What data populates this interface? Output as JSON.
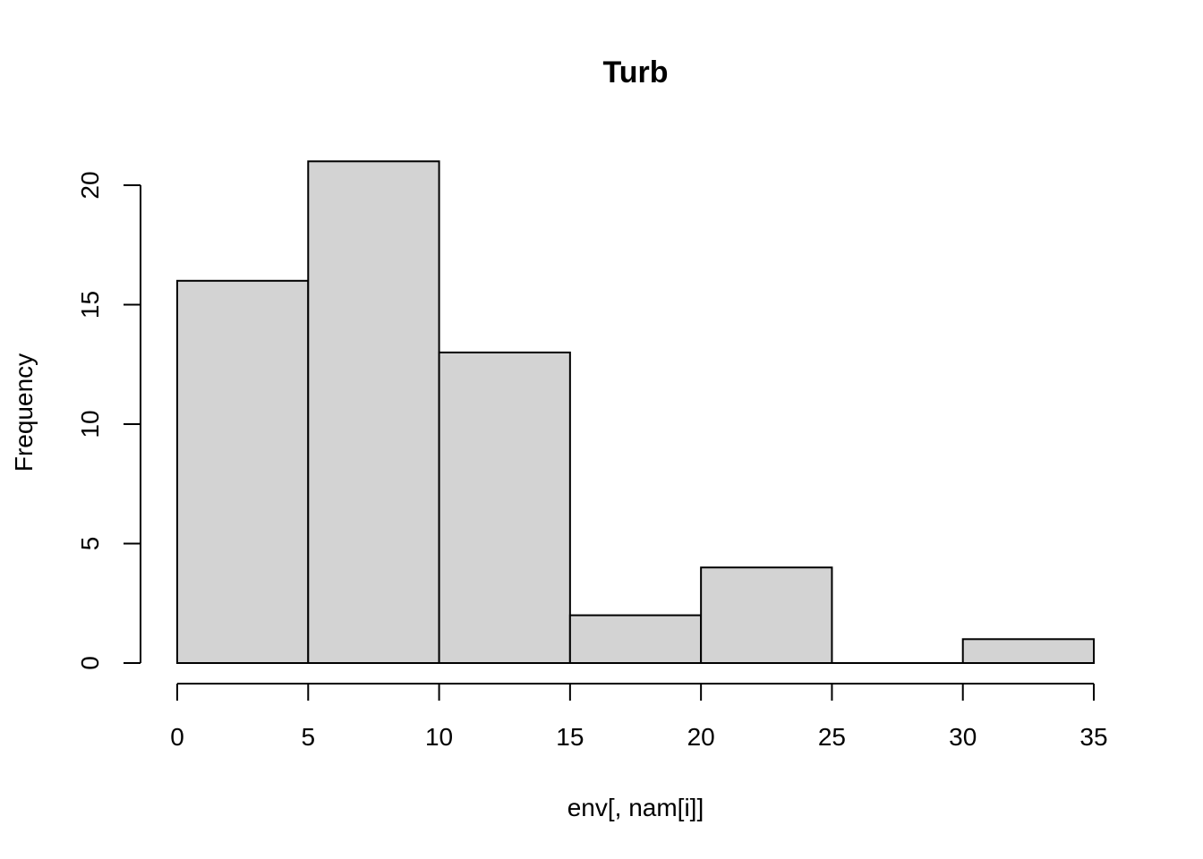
{
  "chart_data": {
    "type": "bar",
    "title": "Turb",
    "xlabel": "env[, nam[i]]",
    "ylabel": "Frequency",
    "bins": [
      {
        "from": 0,
        "to": 5,
        "count": 16
      },
      {
        "from": 5,
        "to": 10,
        "count": 21
      },
      {
        "from": 10,
        "to": 15,
        "count": 13
      },
      {
        "from": 15,
        "to": 20,
        "count": 2
      },
      {
        "from": 20,
        "to": 25,
        "count": 4
      },
      {
        "from": 25,
        "to": 30,
        "count": 0
      },
      {
        "from": 30,
        "to": 35,
        "count": 1
      }
    ],
    "xlim": [
      0,
      35
    ],
    "ylim": [
      0,
      21
    ],
    "x_ticks": [
      0,
      5,
      10,
      15,
      20,
      25,
      30,
      35
    ],
    "y_ticks": [
      0,
      5,
      10,
      15,
      20
    ],
    "bar_color": "#d3d3d3",
    "grid": false
  }
}
